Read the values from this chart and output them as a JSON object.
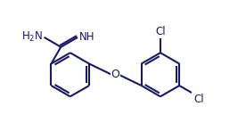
{
  "background_color": "#ffffff",
  "line_color": "#1a1a5e",
  "text_color": "#1a1a5e",
  "line_width": 1.5,
  "font_size": 8.5,
  "figsize": [
    2.76,
    1.56
  ],
  "dpi": 100,
  "xlim": [
    0,
    9.5
  ],
  "ylim": [
    0,
    5.2
  ]
}
